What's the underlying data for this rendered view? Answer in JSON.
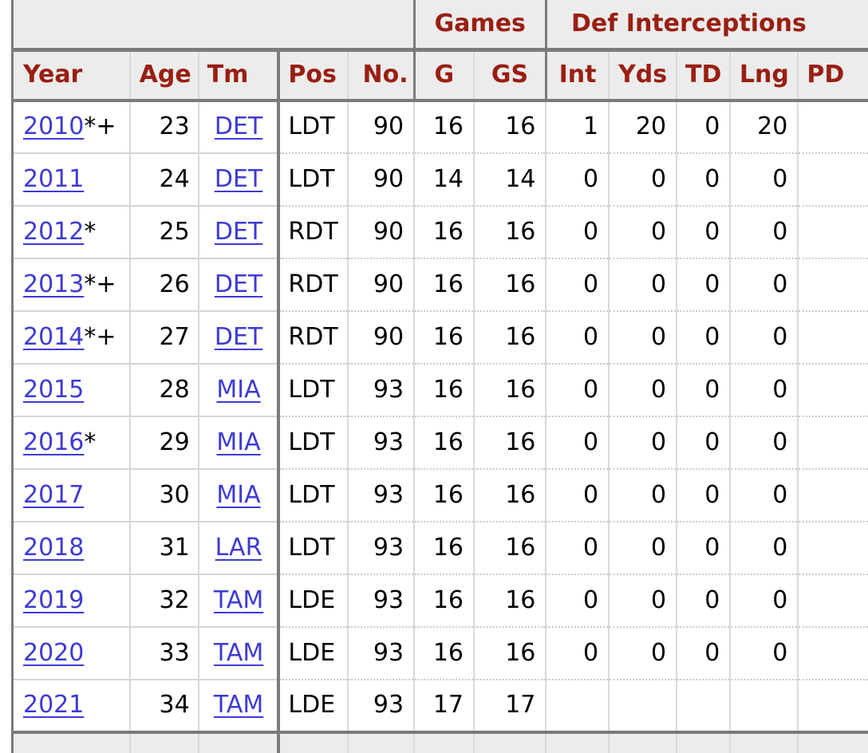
{
  "table": {
    "group_headers": [
      {
        "key": "blank",
        "label": "",
        "span": 5
      },
      {
        "key": "games",
        "label": "Games",
        "span": 2
      },
      {
        "key": "def-interceptions",
        "label": "Def Interceptions",
        "span": 5
      }
    ],
    "columns": [
      {
        "key": "year",
        "label": "Year"
      },
      {
        "key": "age",
        "label": "Age"
      },
      {
        "key": "tm",
        "label": "Tm"
      },
      {
        "key": "pos",
        "label": "Pos"
      },
      {
        "key": "no",
        "label": "No."
      },
      {
        "key": "g",
        "label": "G"
      },
      {
        "key": "gs",
        "label": "GS"
      },
      {
        "key": "int",
        "label": "Int"
      },
      {
        "key": "yds",
        "label": "Yds"
      },
      {
        "key": "td",
        "label": "TD"
      },
      {
        "key": "lng",
        "label": "Lng"
      },
      {
        "key": "pd",
        "label": "PD"
      }
    ],
    "rows": [
      {
        "year": "2010",
        "year_suffix": "*+",
        "age": "23",
        "tm": "DET",
        "pos": "LDT",
        "no": "90",
        "g": "16",
        "gs": "16",
        "int": "1",
        "yds": "20",
        "td": "0",
        "lng": "20",
        "pd": ""
      },
      {
        "year": "2011",
        "year_suffix": "",
        "age": "24",
        "tm": "DET",
        "pos": "LDT",
        "no": "90",
        "g": "14",
        "gs": "14",
        "int": "0",
        "yds": "0",
        "td": "0",
        "lng": "0",
        "pd": ""
      },
      {
        "year": "2012",
        "year_suffix": "*",
        "age": "25",
        "tm": "DET",
        "pos": "RDT",
        "no": "90",
        "g": "16",
        "gs": "16",
        "int": "0",
        "yds": "0",
        "td": "0",
        "lng": "0",
        "pd": ""
      },
      {
        "year": "2013",
        "year_suffix": "*+",
        "age": "26",
        "tm": "DET",
        "pos": "RDT",
        "no": "90",
        "g": "16",
        "gs": "16",
        "int": "0",
        "yds": "0",
        "td": "0",
        "lng": "0",
        "pd": ""
      },
      {
        "year": "2014",
        "year_suffix": "*+",
        "age": "27",
        "tm": "DET",
        "pos": "RDT",
        "no": "90",
        "g": "16",
        "gs": "16",
        "int": "0",
        "yds": "0",
        "td": "0",
        "lng": "0",
        "pd": ""
      },
      {
        "year": "2015",
        "year_suffix": "",
        "age": "28",
        "tm": "MIA",
        "pos": "LDT",
        "no": "93",
        "g": "16",
        "gs": "16",
        "int": "0",
        "yds": "0",
        "td": "0",
        "lng": "0",
        "pd": ""
      },
      {
        "year": "2016",
        "year_suffix": "*",
        "age": "29",
        "tm": "MIA",
        "pos": "LDT",
        "no": "93",
        "g": "16",
        "gs": "16",
        "int": "0",
        "yds": "0",
        "td": "0",
        "lng": "0",
        "pd": ""
      },
      {
        "year": "2017",
        "year_suffix": "",
        "age": "30",
        "tm": "MIA",
        "pos": "LDT",
        "no": "93",
        "g": "16",
        "gs": "16",
        "int": "0",
        "yds": "0",
        "td": "0",
        "lng": "0",
        "pd": ""
      },
      {
        "year": "2018",
        "year_suffix": "",
        "age": "31",
        "tm": "LAR",
        "pos": "LDT",
        "no": "93",
        "g": "16",
        "gs": "16",
        "int": "0",
        "yds": "0",
        "td": "0",
        "lng": "0",
        "pd": ""
      },
      {
        "year": "2019",
        "year_suffix": "",
        "age": "32",
        "tm": "TAM",
        "pos": "LDE",
        "no": "93",
        "g": "16",
        "gs": "16",
        "int": "0",
        "yds": "0",
        "td": "0",
        "lng": "0",
        "pd": ""
      },
      {
        "year": "2020",
        "year_suffix": "",
        "age": "33",
        "tm": "TAM",
        "pos": "LDE",
        "no": "93",
        "g": "16",
        "gs": "16",
        "int": "0",
        "yds": "0",
        "td": "0",
        "lng": "0",
        "pd": ""
      },
      {
        "year": "2021",
        "year_suffix": "",
        "age": "34",
        "tm": "TAM",
        "pos": "LDE",
        "no": "93",
        "g": "17",
        "gs": "17",
        "int": "",
        "yds": "",
        "td": "",
        "lng": "",
        "pd": ""
      }
    ]
  },
  "colors": {
    "header_text": "#991f12",
    "header_background": "#ececec",
    "link": "#3d3bd3",
    "border_dark": "#7b7b7b",
    "border_light": "#d9d9d9",
    "body_text": "#000000",
    "page_background": "#ffffff"
  }
}
